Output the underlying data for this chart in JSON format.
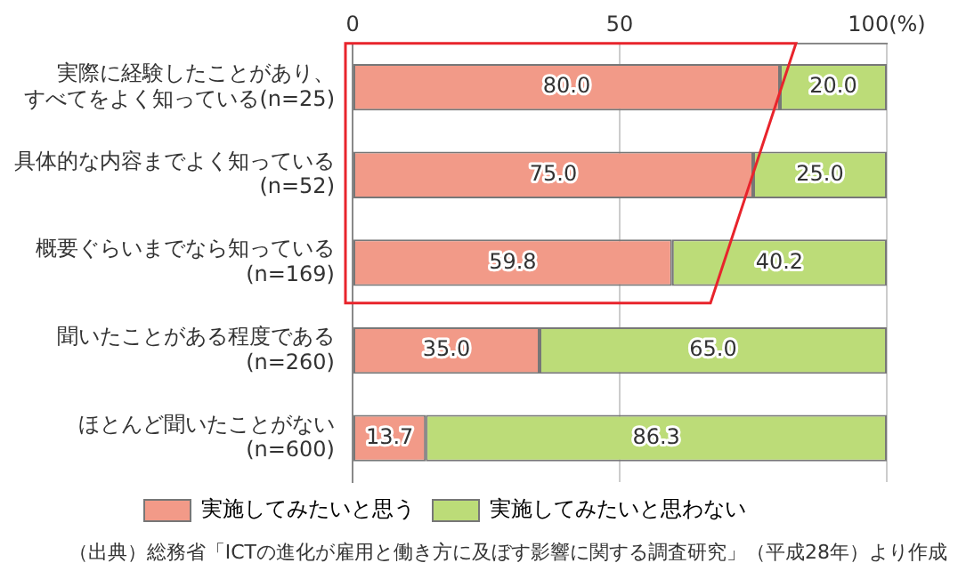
{
  "chart_data": {
    "type": "bar",
    "orientation": "horizontal",
    "stacked": true,
    "categories": [
      "実際に経験したことがあり、すべてをよく知っている(n=25)",
      "具体的な内容までよく知っている(n=52)",
      "概要ぐらいまでなら知っている(n=169)",
      "聞いたことがある程度である(n=260)",
      "ほとんど聞いたことがない(n=600)"
    ],
    "series": [
      {
        "name": "実施してみたいと思う",
        "color": "#f29a88",
        "values": [
          80,
          75,
          59.8,
          35,
          13.7
        ],
        "value_labels": [
          "80.0",
          "75.0",
          "59.8",
          "35.0",
          "13.7"
        ]
      },
      {
        "name": "実施してみたいと思わない",
        "color": "#bcdc78",
        "values": [
          20,
          25,
          40.2,
          65,
          86.3
        ],
        "value_labels": [
          "20.0",
          "25.0",
          "40.2",
          "65.0",
          "86.3"
        ]
      }
    ],
    "xlim": [
      0,
      100
    ],
    "xticks": [
      0,
      50,
      {
        "value": 100,
        "label": "100(%)"
      }
    ],
    "grid": "x",
    "legend": "bottom",
    "annotations": [
      "（出典）総務省「ICTの進化が雇用と働き方に及ぼす影響に関する調査研究」（平成28年）より作成"
    ]
  }
}
